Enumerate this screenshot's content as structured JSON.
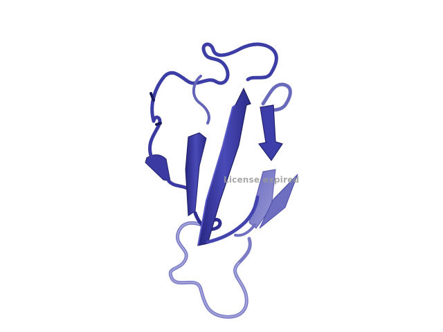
{
  "viewer": {
    "watermark_text": "License expired",
    "background_color": "#ffffff"
  },
  "structure": {
    "description_color_dark": "#2e2e8f",
    "description_color_main": "#4545b0",
    "description_color_light": "#7a7ac4"
  }
}
